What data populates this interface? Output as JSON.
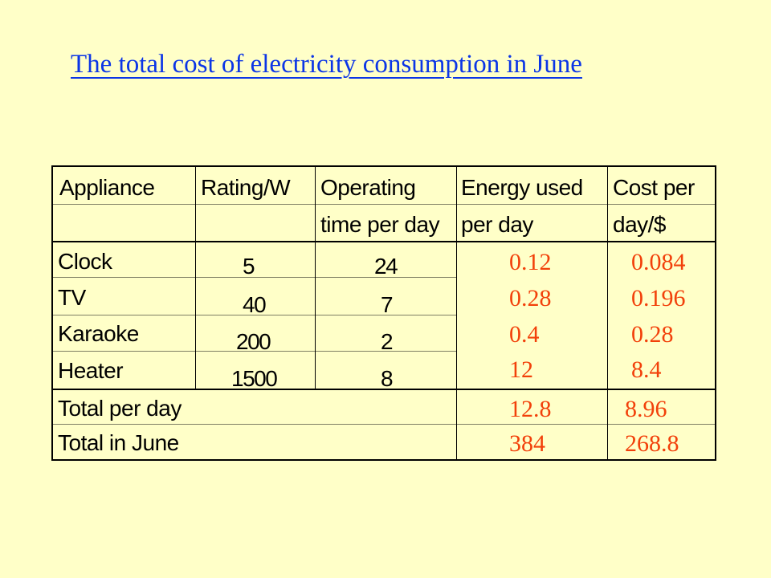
{
  "title": "The total cost of electricity consumption in June",
  "table": {
    "headers_row1": [
      "Appliance",
      "Rating/W",
      "Operating",
      "Energy used",
      "Cost per"
    ],
    "headers_row2": [
      "",
      "",
      "time per day",
      "per day",
      "day/$"
    ],
    "rows": [
      {
        "appliance": "Clock",
        "rating": "5",
        "time": "24",
        "energy": "0.12",
        "cost": "0.084"
      },
      {
        "appliance": "TV",
        "rating": "40",
        "time": "7",
        "energy": "0.28",
        "cost": "0.196"
      },
      {
        "appliance": "Karaoke",
        "rating": "200",
        "time": "2",
        "energy": "0.4",
        "cost": "0.28"
      },
      {
        "appliance": "Heater",
        "rating": "1500",
        "time": "8",
        "energy": "12",
        "cost": "8.4"
      }
    ],
    "totals": [
      {
        "label": "Total per day",
        "energy": "12.8",
        "cost": "8.96"
      },
      {
        "label": "Total in June",
        "energy": "384",
        "cost": "268.8"
      }
    ]
  },
  "colors": {
    "background": "#ffffc8",
    "title": "#0b35e6",
    "answers": "#f2400a"
  }
}
